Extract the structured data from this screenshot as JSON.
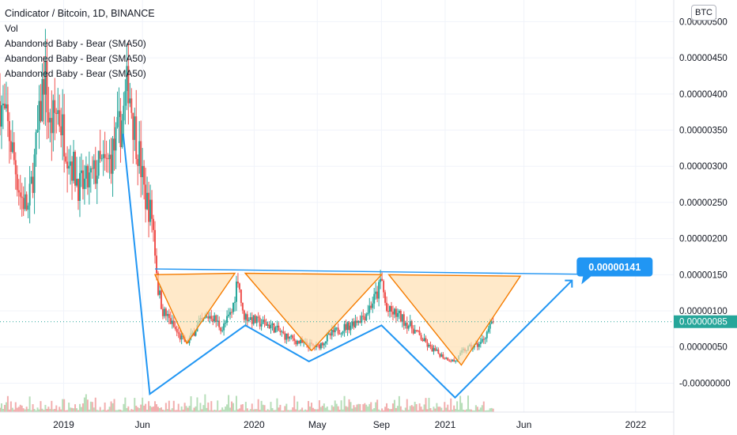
{
  "legend": {
    "title": "Cindicator / Bitcoin, 1D, BINANCE",
    "vol": "Vol",
    "indicators": [
      "Abandoned Baby - Bear (SMA50)",
      "Abandoned Baby - Bear (SMA50)",
      "Abandoned Baby - Bear (SMA50)"
    ]
  },
  "currency_button": "BTC",
  "colors": {
    "up": "#26a69a",
    "down": "#ef5350",
    "drawing_blue": "#2196f3",
    "triangle_stroke": "#f57c00",
    "triangle_fill": "#ffe0b2",
    "current_price_bg": "#26a69a",
    "axis_text": "#131722",
    "grid": "#f0f3fa"
  },
  "chart_data": {
    "type": "candlestick",
    "title": "Cindicator / Bitcoin, 1D, BINANCE",
    "y_axis": {
      "ticks": [
        "0.00000500",
        "0.00000450",
        "0.00000400",
        "0.00000350",
        "0.00000300",
        "0.00000250",
        "0.00000200",
        "0.00000150",
        "0.00000100",
        "0.00000050",
        "-0.00000000"
      ],
      "tick_values": [
        5e-06,
        4.5e-06,
        4e-06,
        3.5e-06,
        3e-06,
        2.5e-06,
        2e-06,
        1.5e-06,
        1e-06,
        5e-07,
        0.0
      ],
      "range": [
        -4e-07,
        5.3e-06
      ]
    },
    "x_axis": {
      "ticks": [
        "2019",
        "Jun",
        "2020",
        "May",
        "Sep",
        "2021",
        "Jun",
        "2022"
      ],
      "tick_dates": [
        "2019-01-01",
        "2019-06-01",
        "2020-01-01",
        "2020-05-01",
        "2020-09-01",
        "2021-01-01",
        "2021-06-01",
        "2022-01-01"
      ],
      "range": [
        "2018-09-01",
        "2022-03-15"
      ]
    },
    "current_price": {
      "label": "0.00000085",
      "value": 8.5e-07
    },
    "target_label": {
      "label": "0.00000141",
      "value": 1.41e-06
    },
    "price_path": [
      [
        "2018-09-01",
        3.9e-06
      ],
      [
        "2018-09-20",
        3.4e-06
      ],
      [
        "2018-10-10",
        2.6e-06
      ],
      [
        "2018-10-25",
        2.4e-06
      ],
      [
        "2018-11-05",
        3e-06
      ],
      [
        "2018-11-15",
        3.6e-06
      ],
      [
        "2018-11-25",
        4.35e-06
      ],
      [
        "2018-12-05",
        3.5e-06
      ],
      [
        "2018-12-20",
        3.8e-06
      ],
      [
        "2019-01-10",
        3.2e-06
      ],
      [
        "2019-02-01",
        2.7e-06
      ],
      [
        "2019-02-20",
        2.8e-06
      ],
      [
        "2019-03-10",
        3e-06
      ],
      [
        "2019-03-25",
        3e-06
      ],
      [
        "2019-04-10",
        3.3e-06
      ],
      [
        "2019-04-25",
        3.7e-06
      ],
      [
        "2019-05-05",
        4.2e-06
      ],
      [
        "2019-05-15",
        3.6e-06
      ],
      [
        "2019-05-25",
        3.2e-06
      ],
      [
        "2019-06-05",
        2.6e-06
      ],
      [
        "2019-06-20",
        2.3e-06
      ],
      [
        "2019-07-01",
        1.3e-06
      ],
      [
        "2019-07-10",
        1e-06
      ],
      [
        "2019-07-25",
        8.5e-07
      ],
      [
        "2019-08-10",
        6.5e-07
      ],
      [
        "2019-08-25",
        5.5e-07
      ],
      [
        "2019-09-15",
        8e-07
      ],
      [
        "2019-10-10",
        9.5e-07
      ],
      [
        "2019-11-01",
        7.5e-07
      ],
      [
        "2019-11-20",
        1e-06
      ],
      [
        "2019-12-01",
        1.5e-06
      ],
      [
        "2019-12-10",
        9.5e-07
      ],
      [
        "2020-01-05",
        8.5e-07
      ],
      [
        "2020-02-01",
        8e-07
      ],
      [
        "2020-03-01",
        6.5e-07
      ],
      [
        "2020-04-01",
        5.5e-07
      ],
      [
        "2020-05-01",
        5e-07
      ],
      [
        "2020-06-01",
        7e-07
      ],
      [
        "2020-07-01",
        8e-07
      ],
      [
        "2020-08-01",
        9.5e-07
      ],
      [
        "2020-08-25",
        1.25e-06
      ],
      [
        "2020-09-01",
        1.45e-06
      ],
      [
        "2020-09-10",
        1e-06
      ],
      [
        "2020-10-01",
        9.5e-07
      ],
      [
        "2020-11-01",
        7.5e-07
      ],
      [
        "2020-12-01",
        5e-07
      ],
      [
        "2021-01-01",
        3.5e-07
      ],
      [
        "2021-01-20",
        3e-07
      ],
      [
        "2021-02-05",
        4.5e-07
      ],
      [
        "2021-02-20",
        5e-07
      ],
      [
        "2021-03-10",
        5.5e-07
      ],
      [
        "2021-03-25",
        7.5e-07
      ],
      [
        "2021-04-05",
        8.5e-07
      ]
    ],
    "patterns": {
      "neckline": [
        [
          "2019-06-25",
          1.58e-06
        ],
        [
          "2021-12-01",
          1.5e-06
        ]
      ],
      "zigzag": [
        [
          "2019-04-25",
          3.45e-06
        ],
        [
          "2019-06-15",
          -1.5e-07
        ],
        [
          "2019-12-15",
          8e-07
        ],
        [
          "2020-04-15",
          3e-07
        ],
        [
          "2020-09-01",
          8e-07
        ],
        [
          "2021-01-20",
          -2e-07
        ],
        [
          "2021-09-01",
          1.42e-06
        ]
      ],
      "triangles": [
        [
          [
            "2019-06-25",
            1.5e-06
          ],
          [
            "2019-08-25",
            5.5e-07
          ],
          [
            "2019-11-25",
            1.52e-06
          ]
        ],
        [
          [
            "2019-12-15",
            1.52e-06
          ],
          [
            "2020-04-20",
            4.5e-07
          ],
          [
            "2020-09-01",
            1.5e-06
          ]
        ],
        [
          [
            "2020-09-15",
            1.5e-06
          ],
          [
            "2021-02-01",
            2.5e-07
          ],
          [
            "2021-05-25",
            1.48e-06
          ]
        ]
      ],
      "arrow_head": [
        "2021-09-01",
        1.42e-06
      ]
    }
  }
}
